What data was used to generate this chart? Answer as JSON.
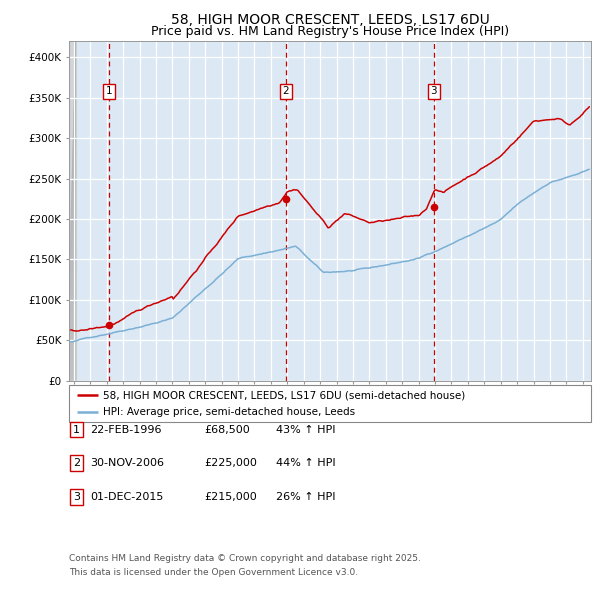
{
  "title1": "58, HIGH MOOR CRESCENT, LEEDS, LS17 6DU",
  "title2": "Price paid vs. HM Land Registry's House Price Index (HPI)",
  "ylabel_ticks": [
    "£0",
    "£50K",
    "£100K",
    "£150K",
    "£200K",
    "£250K",
    "£300K",
    "£350K",
    "£400K"
  ],
  "ytick_vals": [
    0,
    50000,
    100000,
    150000,
    200000,
    250000,
    300000,
    350000,
    400000
  ],
  "ylim": [
    0,
    420000
  ],
  "xlim_start": 1993.7,
  "xlim_end": 2025.5,
  "sale1_date": 1996.13,
  "sale1_price": 68500,
  "sale2_date": 2006.92,
  "sale2_price": 225000,
  "sale3_date": 2015.92,
  "sale3_price": 215000,
  "vline_color": "#cc0000",
  "red_line_color": "#cc0000",
  "blue_line_color": "#7bafd4",
  "plot_bg_color": "#dce9f5",
  "grid_color": "#ffffff",
  "legend_label_red": "58, HIGH MOOR CRESCENT, LEEDS, LS17 6DU (semi-detached house)",
  "legend_label_blue": "HPI: Average price, semi-detached house, Leeds",
  "table_rows": [
    {
      "num": "1",
      "date": "22-FEB-1996",
      "price": "£68,500",
      "hpi": "43% ↑ HPI"
    },
    {
      "num": "2",
      "date": "30-NOV-2006",
      "price": "£225,000",
      "hpi": "44% ↑ HPI"
    },
    {
      "num": "3",
      "date": "01-DEC-2015",
      "price": "£215,000",
      "hpi": "26% ↑ HPI"
    }
  ],
  "footnote1": "Contains HM Land Registry data © Crown copyright and database right 2025.",
  "footnote2": "This data is licensed under the Open Government Licence v3.0.",
  "title_fontsize": 10,
  "subtitle_fontsize": 9,
  "tick_fontsize": 7.5,
  "legend_fontsize": 7.5,
  "table_fontsize": 8
}
